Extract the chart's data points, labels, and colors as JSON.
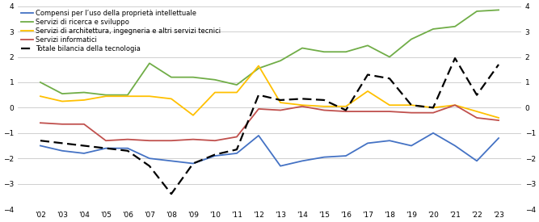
{
  "years": [
    2002,
    2003,
    2004,
    2005,
    2006,
    2007,
    2008,
    2009,
    2010,
    2011,
    2012,
    2013,
    2014,
    2015,
    2016,
    2017,
    2018,
    2019,
    2020,
    2021,
    2022,
    2023
  ],
  "blue": [
    -1.5,
    -1.7,
    -1.8,
    -1.6,
    -1.6,
    -2.0,
    -2.1,
    -2.2,
    -1.9,
    -1.8,
    -1.1,
    -2.3,
    -2.1,
    -1.95,
    -1.9,
    -1.4,
    -1.3,
    -1.5,
    -1.0,
    -1.5,
    -2.1,
    -1.2
  ],
  "green": [
    1.0,
    0.55,
    0.6,
    0.5,
    0.5,
    1.75,
    1.2,
    1.2,
    1.1,
    0.9,
    1.55,
    1.85,
    2.35,
    2.2,
    2.2,
    2.45,
    2.0,
    2.7,
    3.1,
    3.2,
    3.8,
    3.85
  ],
  "yellow": [
    0.45,
    0.25,
    0.3,
    0.45,
    0.45,
    0.45,
    0.35,
    -0.3,
    0.6,
    0.6,
    1.65,
    0.2,
    0.1,
    0.05,
    0.05,
    0.65,
    0.1,
    0.1,
    0.0,
    0.1,
    -0.15,
    -0.4
  ],
  "red": [
    -0.6,
    -0.65,
    -0.65,
    -1.3,
    -1.25,
    -1.3,
    -1.3,
    -1.25,
    -1.3,
    -1.15,
    -0.05,
    -0.1,
    0.05,
    -0.1,
    -0.15,
    -0.15,
    -0.15,
    -0.2,
    -0.2,
    0.1,
    -0.4,
    -0.5
  ],
  "dashed": [
    -1.3,
    -1.4,
    -1.5,
    -1.6,
    -1.7,
    -2.3,
    -3.4,
    -2.2,
    -1.85,
    -1.65,
    0.5,
    0.3,
    0.35,
    0.3,
    -0.1,
    1.3,
    1.15,
    0.1,
    0.0,
    1.95,
    0.5,
    1.7
  ],
  "legend_labels": [
    "Compensi per l’uso della proprietà intellettuale",
    "Servizi di ricerca e sviluppo",
    "Servizi di architettura, ingegneria e altri servizi tecnici",
    "Servizi informatici",
    "Totale bilancia della tecnologia"
  ],
  "line_colors": [
    "#4472C4",
    "#70AD47",
    "#FFC000",
    "#C0504D",
    "#000000"
  ],
  "ylim": [
    -4,
    4
  ],
  "yticks": [
    -4,
    -3,
    -2,
    -1,
    0,
    1,
    2,
    3,
    4
  ],
  "xtick_labels": [
    "'02",
    "'03",
    "'04",
    "'05",
    "'06",
    "'07",
    "'08",
    "'09",
    "'10",
    "'11",
    "'12",
    "'13",
    "'14",
    "'15",
    "'16",
    "'17",
    "'18",
    "'19",
    "'20",
    "'21",
    "'22",
    "'23"
  ],
  "bg_color": "#ffffff",
  "grid_color": "#c8c8c8",
  "tick_fontsize": 6.5,
  "legend_fontsize": 6.0,
  "linewidth": 1.3,
  "dashed_linewidth": 1.6
}
